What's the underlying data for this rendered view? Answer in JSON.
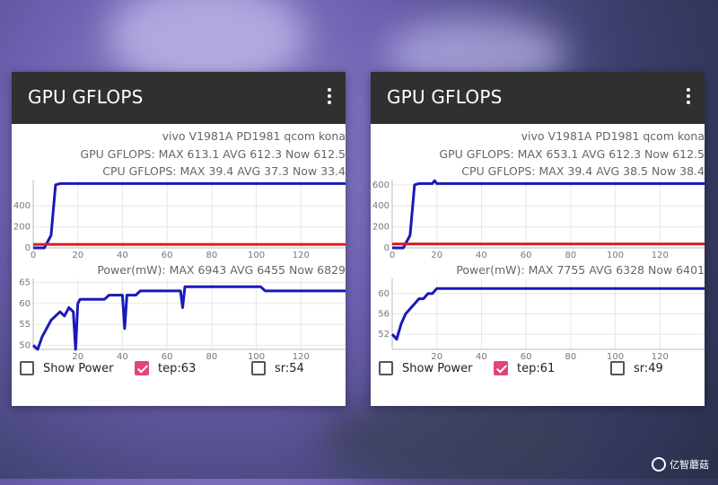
{
  "panels": [
    {
      "app_title": "GPU GFLOPS",
      "device": "vivo V1981A PD1981 qcom kona",
      "gpu_stats": "GPU GFLOPS: MAX 613.1 AVG 612.3 Now 612.5",
      "cpu_stats": "CPU GFLOPS: MAX 39.4 AVG 37.3 Now 33.4",
      "power_stats": "Power(mW): MAX 6943 AVG 6455 Now 6829",
      "show_power_label": "Show Power",
      "tep_label": "tep:63",
      "sr_label": "sr:54"
    },
    {
      "app_title": "GPU GFLOPS",
      "device": "vivo V1981A PD1981 qcom kona",
      "gpu_stats": "GPU GFLOPS: MAX 653.1 AVG 612.3 Now 612.5",
      "cpu_stats": "CPU GFLOPS: MAX 39.4 AVG 38.5 Now 38.4",
      "power_stats": "Power(mW): MAX 7755 AVG 6328 Now 6401",
      "show_power_label": "Show Power",
      "tep_label": "tep:61",
      "sr_label": "sr:49"
    }
  ],
  "watermark": "亿智蘑菇",
  "colors": {
    "gpu_line": "#1a1ab8",
    "cpu_line": "#d42020",
    "temp_line": "#1a1ab8",
    "checkbox_checked": "#e0457b",
    "appbar": "#303030"
  },
  "chart_data": [
    {
      "type": "line",
      "title": "",
      "x_ticks": [
        "0",
        "20",
        "40",
        "60",
        "80",
        "100",
        "120"
      ],
      "y_ticks": [
        "0",
        "200",
        "400"
      ],
      "series": [
        {
          "name": "GPU",
          "x": [
            0,
            5,
            8,
            10,
            12,
            140
          ],
          "y": [
            0,
            0,
            120,
            600,
            612,
            612
          ]
        },
        {
          "name": "CPU",
          "x": [
            0,
            140
          ],
          "y": [
            33,
            33
          ]
        }
      ],
      "xlim": [
        0,
        140
      ],
      "ylim": [
        0,
        650
      ]
    },
    {
      "type": "line",
      "title": "",
      "x_ticks": [
        "20",
        "40",
        "60",
        "80",
        "100",
        "120"
      ],
      "y_ticks": [
        "50",
        "55",
        "60",
        "65"
      ],
      "series": [
        {
          "name": "temperature",
          "x": [
            0,
            2,
            4,
            6,
            8,
            10,
            12,
            14,
            16,
            18,
            19,
            20,
            21,
            22,
            24,
            26,
            28,
            30,
            32,
            34,
            36,
            38,
            40,
            41,
            42,
            43,
            44,
            46,
            48,
            50,
            52,
            54,
            56,
            58,
            60,
            62,
            64,
            66,
            67,
            68,
            69,
            70,
            72,
            74,
            76,
            78,
            80,
            82,
            84,
            86,
            88,
            90,
            92,
            94,
            96,
            98,
            100,
            102,
            104,
            106,
            108,
            110,
            112,
            114,
            116,
            118,
            120,
            122,
            124,
            126,
            128,
            130,
            132,
            134,
            136,
            138,
            140
          ],
          "y": [
            50,
            49,
            52,
            54,
            56,
            57,
            58,
            57,
            59,
            58,
            49,
            60,
            61,
            61,
            61,
            61,
            61,
            61,
            61,
            62,
            62,
            62,
            62,
            54,
            62,
            62,
            62,
            62,
            63,
            63,
            63,
            63,
            63,
            63,
            63,
            63,
            63,
            63,
            59,
            64,
            64,
            64,
            64,
            64,
            64,
            64,
            64,
            64,
            64,
            64,
            64,
            64,
            64,
            64,
            64,
            64,
            64,
            64,
            63,
            63,
            63,
            63,
            63,
            63,
            63,
            63,
            63,
            63,
            63,
            63,
            63,
            63,
            63,
            63,
            63,
            63,
            63
          ]
        }
      ],
      "xlim": [
        0,
        140
      ],
      "ylim": [
        49,
        66
      ]
    },
    {
      "type": "line",
      "title": "",
      "x_ticks": [
        "0",
        "20",
        "40",
        "60",
        "80",
        "100",
        "120"
      ],
      "y_ticks": [
        "0",
        "200",
        "400",
        "600"
      ],
      "series": [
        {
          "name": "GPU",
          "x": [
            0,
            5,
            8,
            10,
            12,
            18,
            19,
            20,
            22,
            140
          ],
          "y": [
            0,
            0,
            120,
            600,
            612,
            612,
            640,
            612,
            612,
            612
          ]
        },
        {
          "name": "CPU",
          "x": [
            0,
            140
          ],
          "y": [
            38,
            38
          ]
        }
      ],
      "xlim": [
        0,
        140
      ],
      "ylim": [
        0,
        650
      ]
    },
    {
      "type": "line",
      "title": "",
      "x_ticks": [
        "20",
        "40",
        "60",
        "80",
        "100",
        "120"
      ],
      "y_ticks": [
        "52",
        "56",
        "60"
      ],
      "series": [
        {
          "name": "temperature",
          "x": [
            0,
            2,
            4,
            6,
            8,
            10,
            12,
            14,
            16,
            18,
            20,
            22,
            24,
            26,
            28,
            30,
            32,
            34,
            36,
            38,
            40,
            42,
            44,
            46,
            48,
            50,
            52,
            54,
            56,
            58,
            60,
            62,
            64,
            66,
            68,
            70,
            72,
            74,
            76,
            78,
            80,
            82,
            84,
            86,
            88,
            90,
            92,
            94,
            96,
            98,
            100,
            102,
            104,
            106,
            108,
            110,
            112,
            114,
            116,
            118,
            120,
            122,
            124,
            126,
            128,
            130,
            132,
            134,
            136,
            138,
            140
          ],
          "y": [
            52,
            51,
            54,
            56,
            57,
            58,
            59,
            59,
            60,
            60,
            61,
            61,
            61,
            61,
            61,
            61,
            61,
            61,
            61,
            61,
            61,
            61,
            61,
            61,
            61,
            61,
            61,
            61,
            61,
            61,
            61,
            61,
            61,
            61,
            61,
            61,
            61,
            61,
            61,
            61,
            61,
            61,
            61,
            61,
            61,
            61,
            61,
            61,
            61,
            61,
            61,
            61,
            61,
            61,
            61,
            61,
            61,
            61,
            61,
            61,
            61,
            61,
            61,
            61,
            61,
            61,
            61,
            61,
            61,
            61,
            61
          ]
        }
      ],
      "xlim": [
        0,
        140
      ],
      "ylim": [
        49,
        63
      ]
    }
  ]
}
